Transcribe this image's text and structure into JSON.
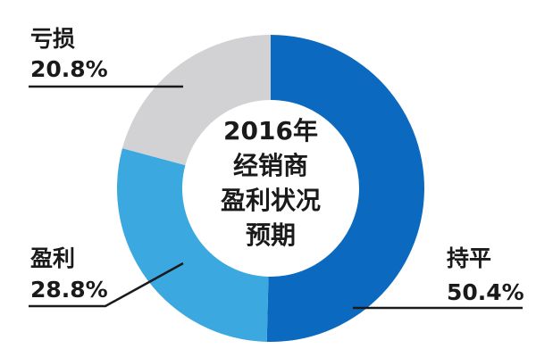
{
  "chart_data": {
    "type": "pie",
    "donut": true,
    "center_title_lines": [
      "2016年",
      "经销商",
      "盈利状况",
      "预期"
    ],
    "slices": [
      {
        "label": "持平",
        "value": 50.4,
        "value_text": "50.4%",
        "color": "#0b6abf"
      },
      {
        "label": "盈利",
        "value": 28.8,
        "value_text": "28.8%",
        "color": "#3ca8e0"
      },
      {
        "label": "亏损",
        "value": 20.8,
        "value_text": "20.8%",
        "color": "#d2d2d4"
      }
    ],
    "start": "top",
    "direction": "clockwise",
    "label_line_color": "#1a1a1a"
  }
}
